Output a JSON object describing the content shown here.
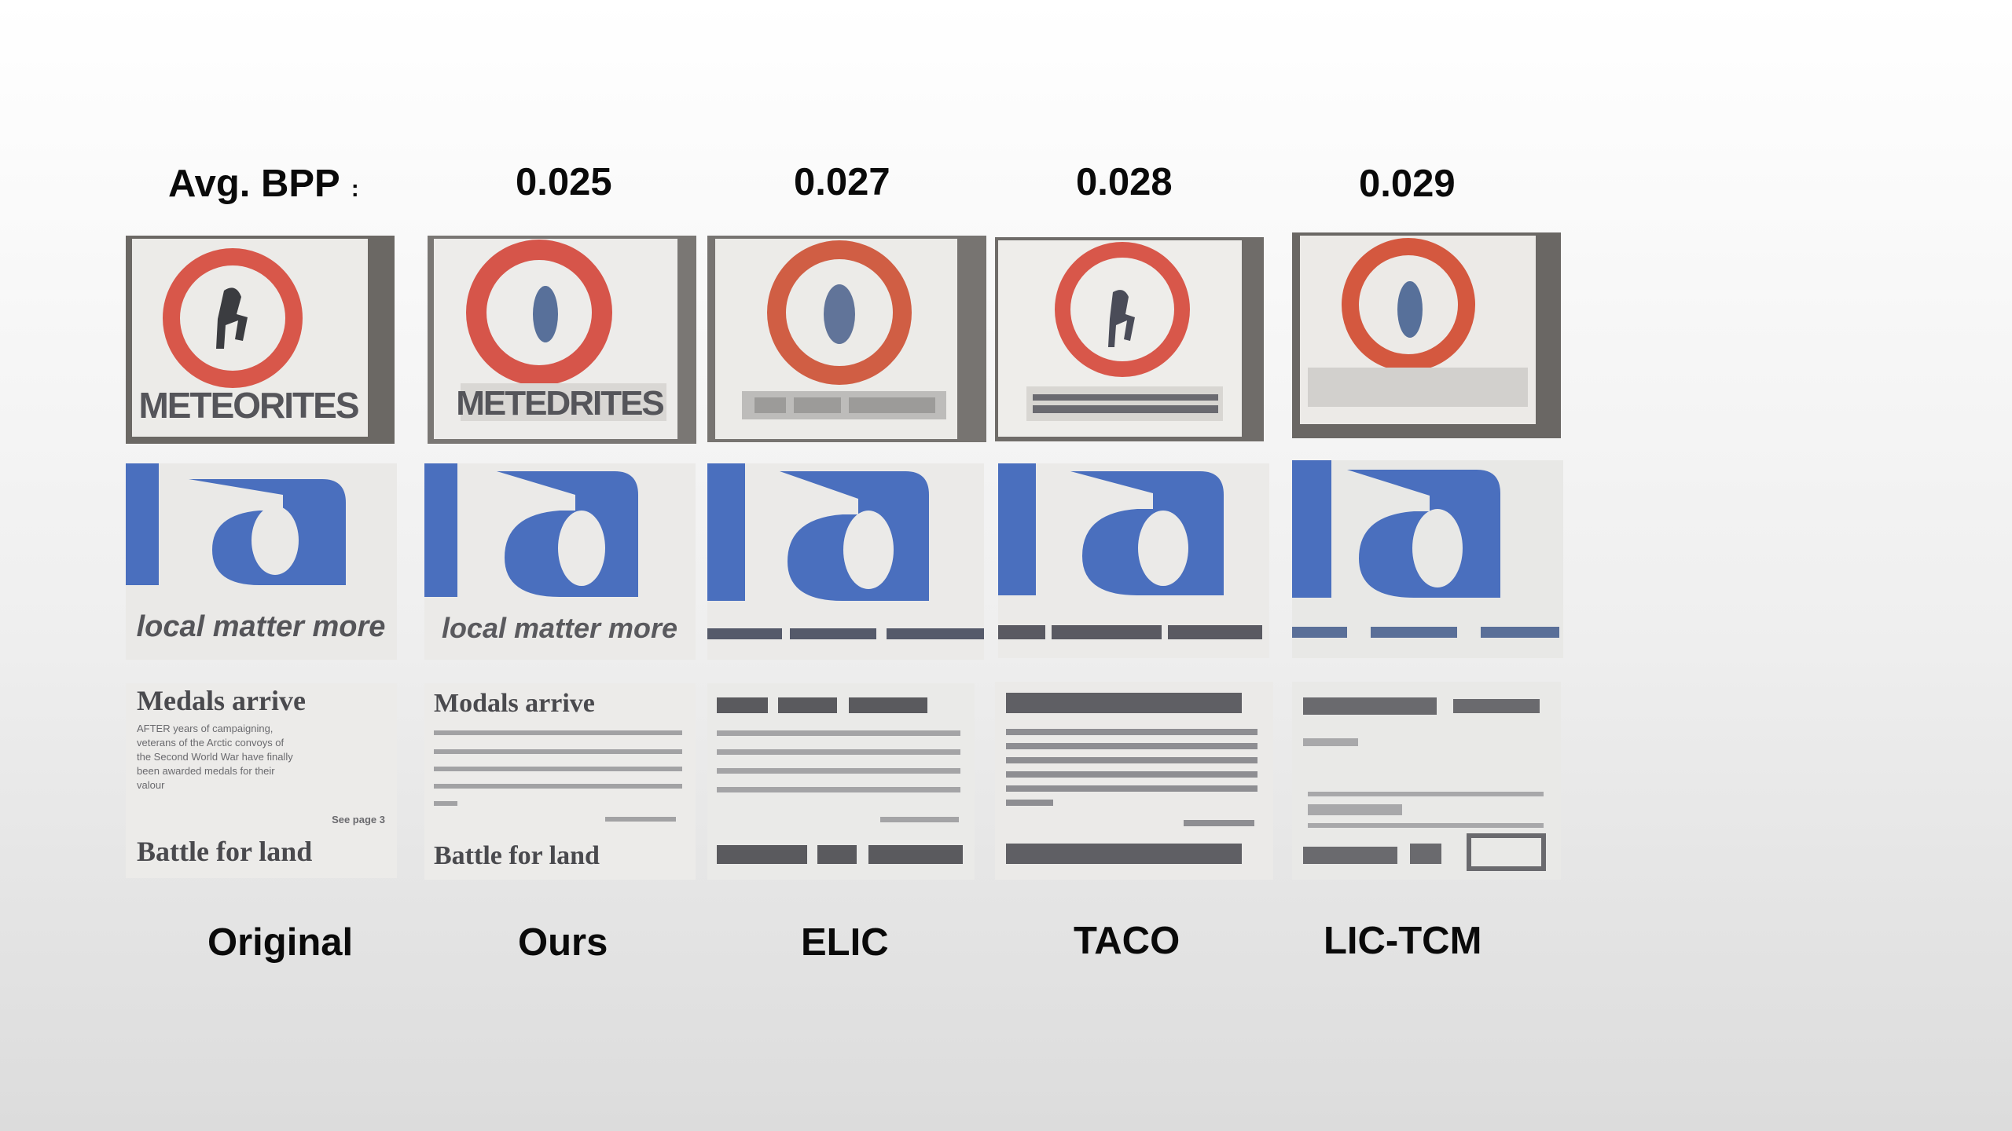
{
  "header": {
    "label": "Avg. BPP",
    "colon": ":",
    "values": [
      "0.025",
      "0.027",
      "0.028",
      "0.029"
    ]
  },
  "methods": [
    "Original",
    "Ours",
    "ELIC",
    "TACO",
    "LIC-TCM"
  ],
  "crops": {
    "sign_text": "METEORITES",
    "sign_text_ours": "METEDRITES",
    "logo_letters": "la",
    "logo_caption": "local matter more",
    "news_headline": "Medals arrive",
    "news_headline_ours": "Modals arrive",
    "news_body": [
      "AFTER years of campaigning,",
      "veterans of the Arctic convoys of",
      "the Second World War have finally",
      "been awarded medals for their",
      "valour"
    ],
    "news_ref": "See page 3",
    "news_headline2": "Battle for land",
    "news_headline2_ours": "Battle for land"
  },
  "colors": {
    "sign_ring": "#d8574a",
    "logo_blue": "#4a6fbe",
    "text_dark": "#0a0a0a"
  }
}
